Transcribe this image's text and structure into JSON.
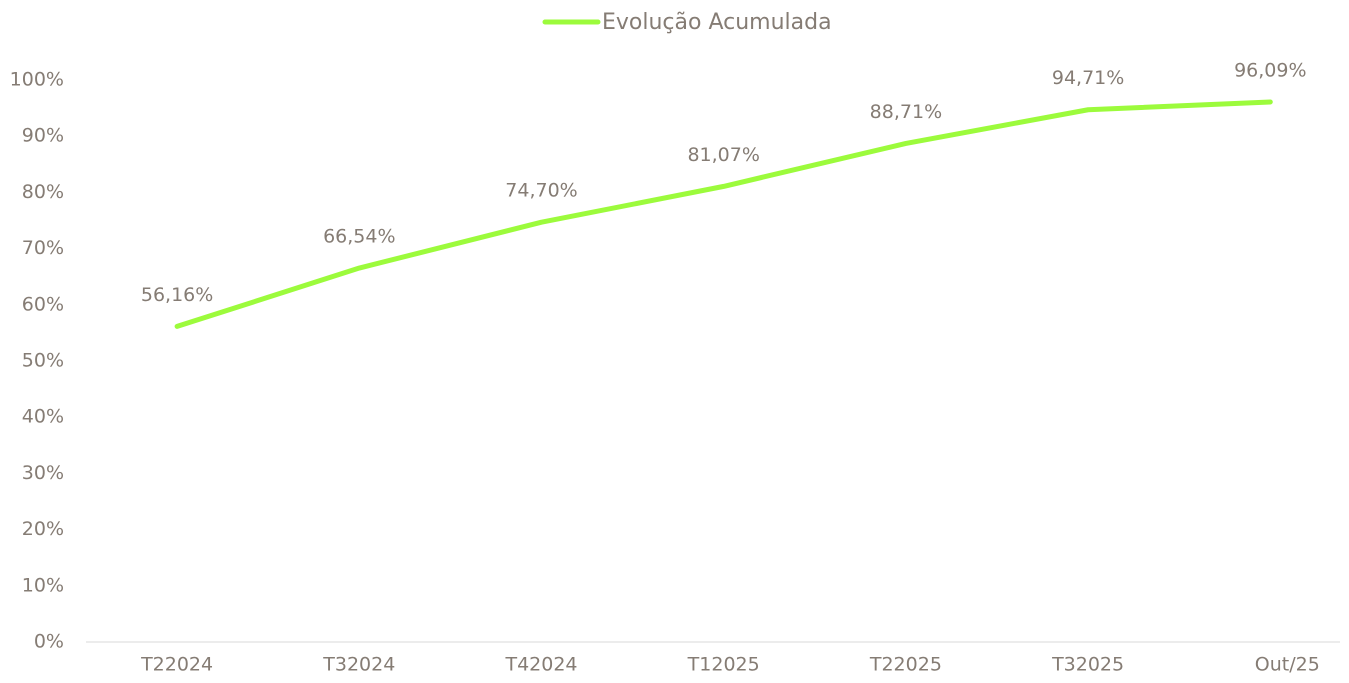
{
  "chart_data": {
    "type": "line",
    "categories": [
      "T22024",
      "T32024",
      "T42024",
      "T12025",
      "T22025",
      "T32025",
      "Out/25"
    ],
    "series": [
      {
        "name": "Evolução Acumulada",
        "color": "#9cfb3c",
        "values": [
          56.16,
          66.54,
          74.7,
          81.07,
          88.71,
          94.71,
          96.09
        ],
        "value_labels": [
          "56,16%",
          "66,54%",
          "74,70%",
          "81,07%",
          "88,71%",
          "94,71%",
          "96,09%"
        ]
      }
    ],
    "ylim": [
      0,
      100
    ],
    "yticks": [
      {
        "value": 0,
        "label": "0%"
      },
      {
        "value": 10,
        "label": "10%"
      },
      {
        "value": 20,
        "label": "20%"
      },
      {
        "value": 30,
        "label": "30%"
      },
      {
        "value": 40,
        "label": "40%"
      },
      {
        "value": 50,
        "label": "50%"
      },
      {
        "value": 60,
        "label": "60%"
      },
      {
        "value": 70,
        "label": "70%"
      },
      {
        "value": 80,
        "label": "80%"
      },
      {
        "value": 90,
        "label": "90%"
      },
      {
        "value": 100,
        "label": "100%"
      }
    ],
    "grid": false,
    "legend": "top"
  }
}
